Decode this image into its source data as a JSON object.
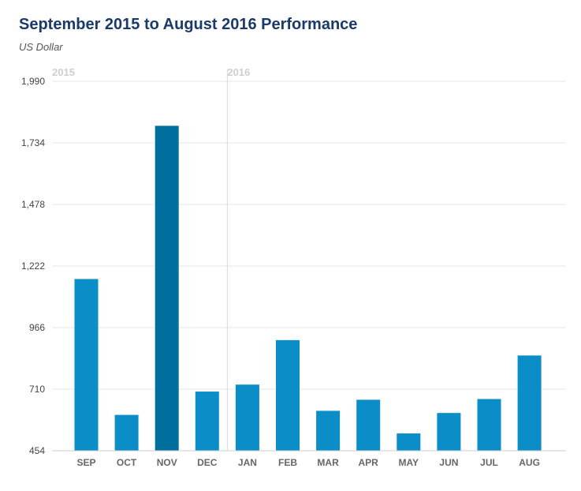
{
  "chart_data": {
    "type": "bar",
    "title": "September 2015 to August 2016 Performance",
    "subtitle": "US Dollar",
    "categories": [
      "SEP",
      "OCT",
      "NOV",
      "DEC",
      "JAN",
      "FEB",
      "MAR",
      "APR",
      "MAY",
      "JUN",
      "JUL",
      "AUG"
    ],
    "values": [
      1168,
      603,
      1805,
      700,
      729,
      914,
      620,
      666,
      526,
      611,
      669,
      850
    ],
    "highlight_index": 2,
    "yticks": [
      "454",
      "710",
      "966",
      "1,222",
      "1,478",
      "1,734",
      "1,990"
    ],
    "ylim": [
      454,
      1990
    ],
    "year_labels": [
      {
        "label": "2015",
        "category_index": 0
      },
      {
        "label": "2016",
        "category_index": 4
      }
    ],
    "grid": true,
    "colors": {
      "bar": "#0b8ec7",
      "bar_highlight": "#006f9e",
      "grid": "#e5e5e5",
      "divider": "#d8d8d8"
    }
  }
}
